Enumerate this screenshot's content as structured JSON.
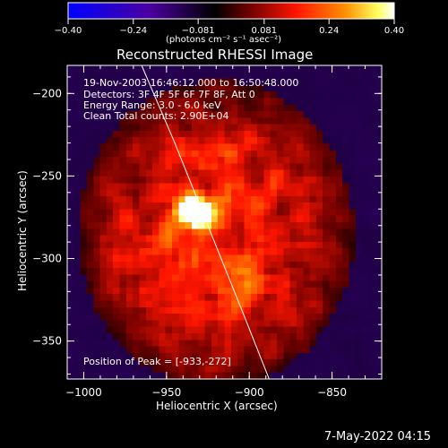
{
  "chart_data": {
    "type": "heatmap",
    "title": "Reconstructed RHESSI Image",
    "xlabel": "Heliocentric X (arcsec)",
    "ylabel": "Heliocentric Y (arcsec)",
    "xlim": [
      -1010,
      -820
    ],
    "ylim": [
      -373,
      -183
    ],
    "x_ticks": [
      -1000,
      -950,
      -900,
      -850
    ],
    "y_ticks": [
      -350,
      -300,
      -250,
      -200
    ],
    "x_tick_labels": [
      "−1000",
      "−950",
      "−900",
      "−850"
    ],
    "y_tick_labels": [
      "−350",
      "−300",
      "−250",
      "−200"
    ],
    "colorbar": {
      "min": -0.4,
      "max": 0.4,
      "ticks": [
        -0.4,
        -0.24,
        -0.081,
        0.081,
        0.24,
        0.4
      ],
      "tick_labels": [
        "−0.40",
        "−0.24",
        "−0.081",
        "0.081",
        "0.24",
        "0.40"
      ],
      "unit_label": "(photons cm⁻² s⁻¹ asec⁻²)",
      "colors": [
        "#0000ff",
        "#5500aa",
        "#000000",
        "#7a0000",
        "#ff2000",
        "#ff9000",
        "#ffff80",
        "#ffffff"
      ]
    },
    "annotations": [
      "19-Nov-2003 16:46:12.000 to 16:50:48.000",
      "Detectors: 3F 4F 5F 6F 7F 8F, Att 0",
      "Energy Range: 3.0 - 6.0 keV",
      "Clean     Total counts: 2.90E+04"
    ],
    "peak_label": "Position of Peak = [-933,-272]",
    "peak": {
      "x": -933,
      "y": -272,
      "value": 0.4
    },
    "secondary_sources": [
      {
        "x": -905,
        "y": -315,
        "value": 0.28
      }
    ],
    "limb_curve": {
      "x": [
        -965,
        -945,
        -925,
        -905,
        -888
      ],
      "y": [
        -183,
        -230,
        -280,
        -330,
        -373
      ]
    }
  },
  "footer": {
    "timestamp": "7-May-2022 04:15"
  }
}
